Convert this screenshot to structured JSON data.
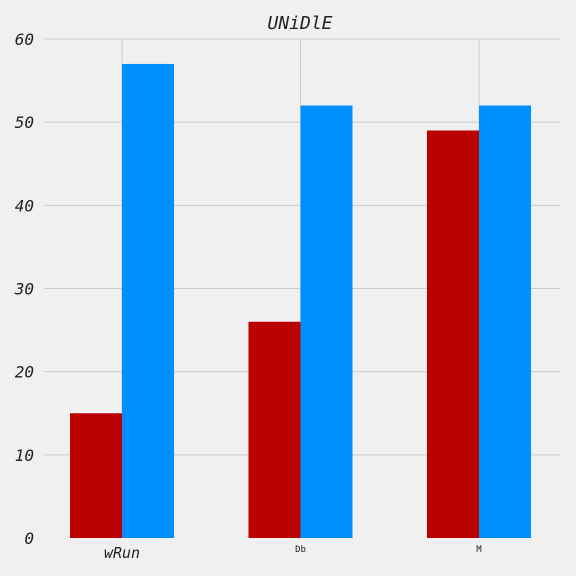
{
  "chart_data": {
    "type": "bar",
    "title": "UNiDlE",
    "categories": [
      "wRun",
      "Db",
      "M"
    ],
    "series": [
      {
        "values": [
          15,
          26,
          49
        ],
        "color": "#bb0000"
      },
      {
        "values": [
          57,
          52,
          52
        ],
        "color": "#008fff"
      }
    ],
    "ylim": [
      0,
      60
    ],
    "yticks": [
      "0",
      "10",
      "20",
      "30",
      "40",
      "50",
      "60"
    ],
    "grid": true,
    "xlabel": "",
    "ylabel": ""
  }
}
